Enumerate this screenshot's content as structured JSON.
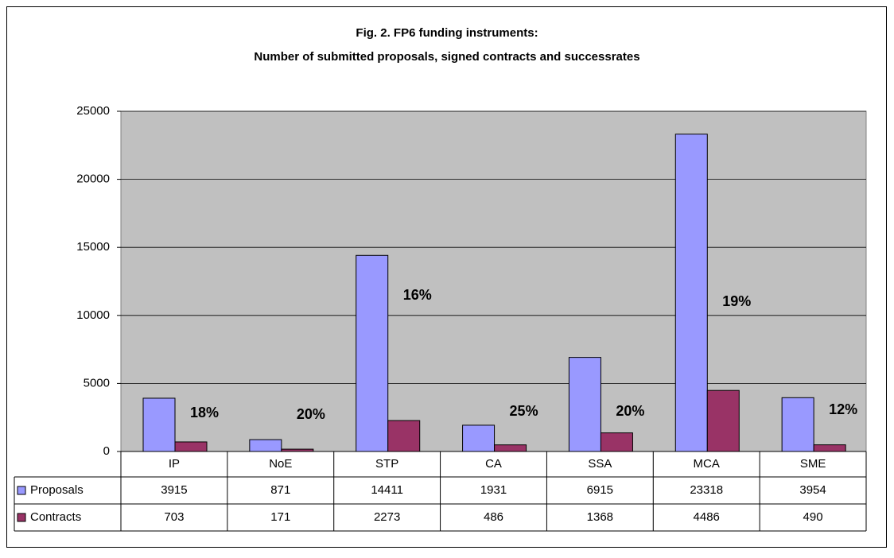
{
  "chart_data": {
    "type": "bar",
    "title": "Fig. 2. FP6 funding instruments:",
    "subtitle": "Number of submitted proposals, signed contracts and successrates",
    "categories": [
      "IP",
      "NoE",
      "STP",
      "CA",
      "SSA",
      "MCA",
      "SME"
    ],
    "series": [
      {
        "name": "Proposals",
        "color": "#9999ff",
        "values": [
          3915,
          871,
          14411,
          1931,
          6915,
          23318,
          3954
        ]
      },
      {
        "name": "Contracts",
        "color": "#993366",
        "values": [
          703,
          171,
          2273,
          486,
          1368,
          4486,
          490
        ]
      }
    ],
    "annotations": {
      "values": [
        18,
        20,
        16,
        25,
        20,
        19,
        12
      ],
      "value_labels": [
        "18%",
        "20%",
        "16%",
        "25%",
        "20%",
        "19%",
        "12%"
      ]
    },
    "ylim": [
      0,
      25000
    ],
    "yticks": [
      0,
      5000,
      10000,
      15000,
      20000,
      25000
    ],
    "grid": true,
    "plot_background": "#c0c0c0"
  }
}
